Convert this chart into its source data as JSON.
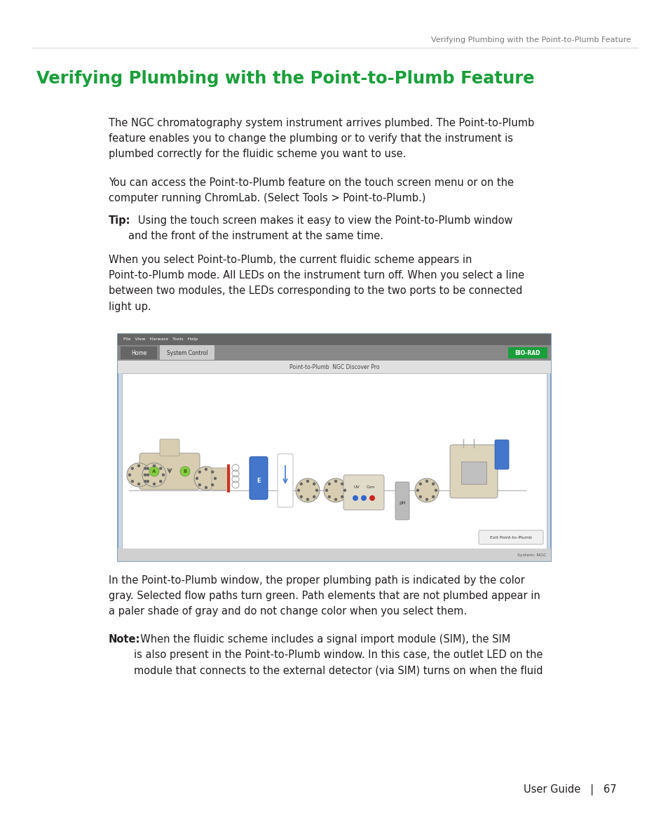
{
  "page_header": "Verifying Plumbing with the Point-to-Plumb Feature",
  "section_title": "Verifying Plumbing with the Point-to-Plumb Feature",
  "section_title_color": "#1a9e3a",
  "body_para1": "The NGC chromatography system instrument arrives plumbed. The Point-to-Plumb\nfeature enables you to change the plumbing or to verify that the instrument is\nplumbed correctly for the fluidic scheme you want to use.",
  "body_para2": "You can access the Point-to-Plumb feature on the touch screen menu or on the\ncomputer running ChromLab. (Select Tools > Point-to-Plumb.)",
  "tip_label": "Tip:",
  "tip_body": "   Using the touch screen makes it easy to view the Point-to-Plumb window\nand the front of the instrument at the same time.",
  "para_after_tip": "When you select Point-to-Plumb, the current fluidic scheme appears in\nPoint-to-Plumb mode. All LEDs on the instrument turn off. When you select a line\nbetween two modules, the LEDs corresponding to the two ports to be connected\nlight up.",
  "para_after_image": "In the Point-to-Plumb window, the proper plumbing path is indicated by the color\ngray. Selected flow paths turn green. Path elements that are not plumbed appear in\na paler shade of gray and do not change color when you select them.",
  "note_label": "Note:",
  "note_body": "  When the fluidic scheme includes a signal import module (SIM), the SIM\nis also present in the Point-to-Plumb window. In this case, the outlet LED on the\nmodule that connects to the external detector (via SIM) turns on when the fluid",
  "footer_text": "User Guide   |   67",
  "bg_color": "#ffffff",
  "text_color": "#231f20",
  "header_color": "#777777",
  "title_color": "#1a9e3a",
  "font_body": 10.5,
  "font_header": 8.0,
  "font_title": 17.5,
  "font_footer": 10.5
}
